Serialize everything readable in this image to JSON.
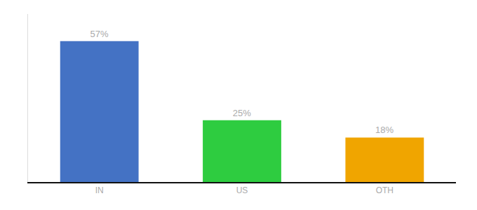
{
  "chart_data": {
    "type": "bar",
    "categories": [
      "IN",
      "US",
      "OTH"
    ],
    "values": [
      57,
      25,
      18
    ],
    "value_labels": [
      "57%",
      "25%",
      "18%"
    ],
    "data_labels": true,
    "colors": [
      "#4472c4",
      "#2ecc40",
      "#f0a500"
    ],
    "ylim": [
      0,
      68
    ],
    "grid": false,
    "tick_labels": "x"
  }
}
